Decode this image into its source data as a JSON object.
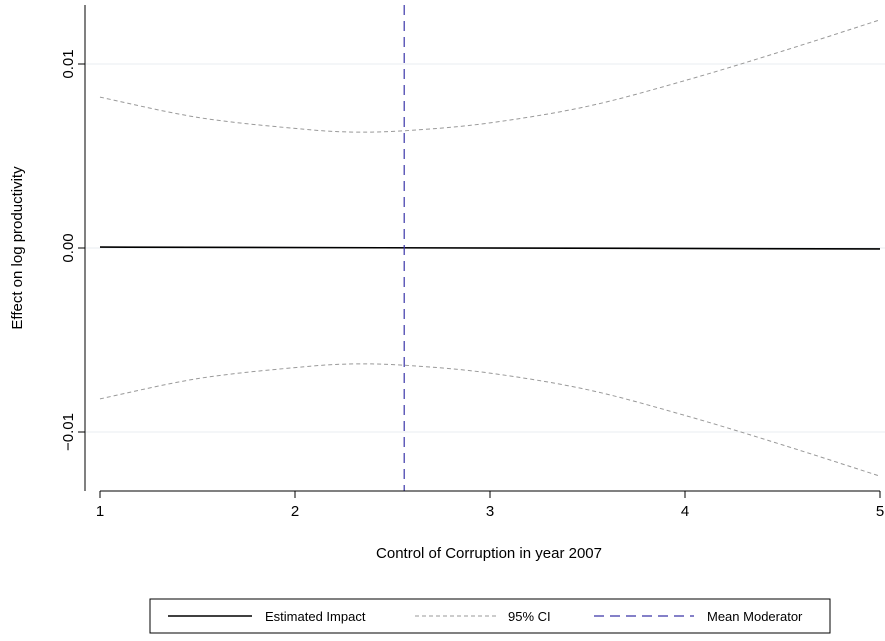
{
  "chart_data": {
    "type": "line",
    "title": "",
    "xlabel": "Control of Corruption in year 2007",
    "ylabel": "Effect on log productivity",
    "xlim": [
      1,
      5
    ],
    "ylim": [
      -0.0133,
      0.0133
    ],
    "x_ticks": [
      1,
      2,
      3,
      4,
      5
    ],
    "x_tick_labels": [
      "1",
      "2",
      "3",
      "4",
      "5"
    ],
    "y_ticks": [
      -0.01,
      0.0,
      0.01
    ],
    "y_tick_labels": [
      "−0.01",
      "0.00",
      "0.01"
    ],
    "grid": "horizontal",
    "legend_position": "bottom",
    "series": [
      {
        "name": "Estimated Impact",
        "style": "solid",
        "color": "#000000",
        "x": [
          1,
          5
        ],
        "y": [
          5e-05,
          -5e-05
        ]
      },
      {
        "name": "95% CI",
        "style": "dashed",
        "color": "#999999",
        "bands": [
          {
            "x": [
              1,
              1.5,
              2,
              2.3,
              2.6,
              3,
              3.5,
              4,
              4.5,
              5
            ],
            "y": [
              0.0082,
              0.0071,
              0.0065,
              0.0063,
              0.0064,
              0.0068,
              0.0077,
              0.0091,
              0.0107,
              0.0124
            ]
          },
          {
            "x": [
              1,
              1.5,
              2,
              2.3,
              2.6,
              3,
              3.5,
              4,
              4.5,
              5
            ],
            "y": [
              -0.0082,
              -0.0071,
              -0.0065,
              -0.0063,
              -0.0064,
              -0.0068,
              -0.0077,
              -0.0091,
              -0.0107,
              -0.0124
            ]
          }
        ]
      },
      {
        "name": "Mean Moderator",
        "style": "longdash",
        "color": "#3a35a8",
        "x_value": 2.56
      }
    ]
  }
}
